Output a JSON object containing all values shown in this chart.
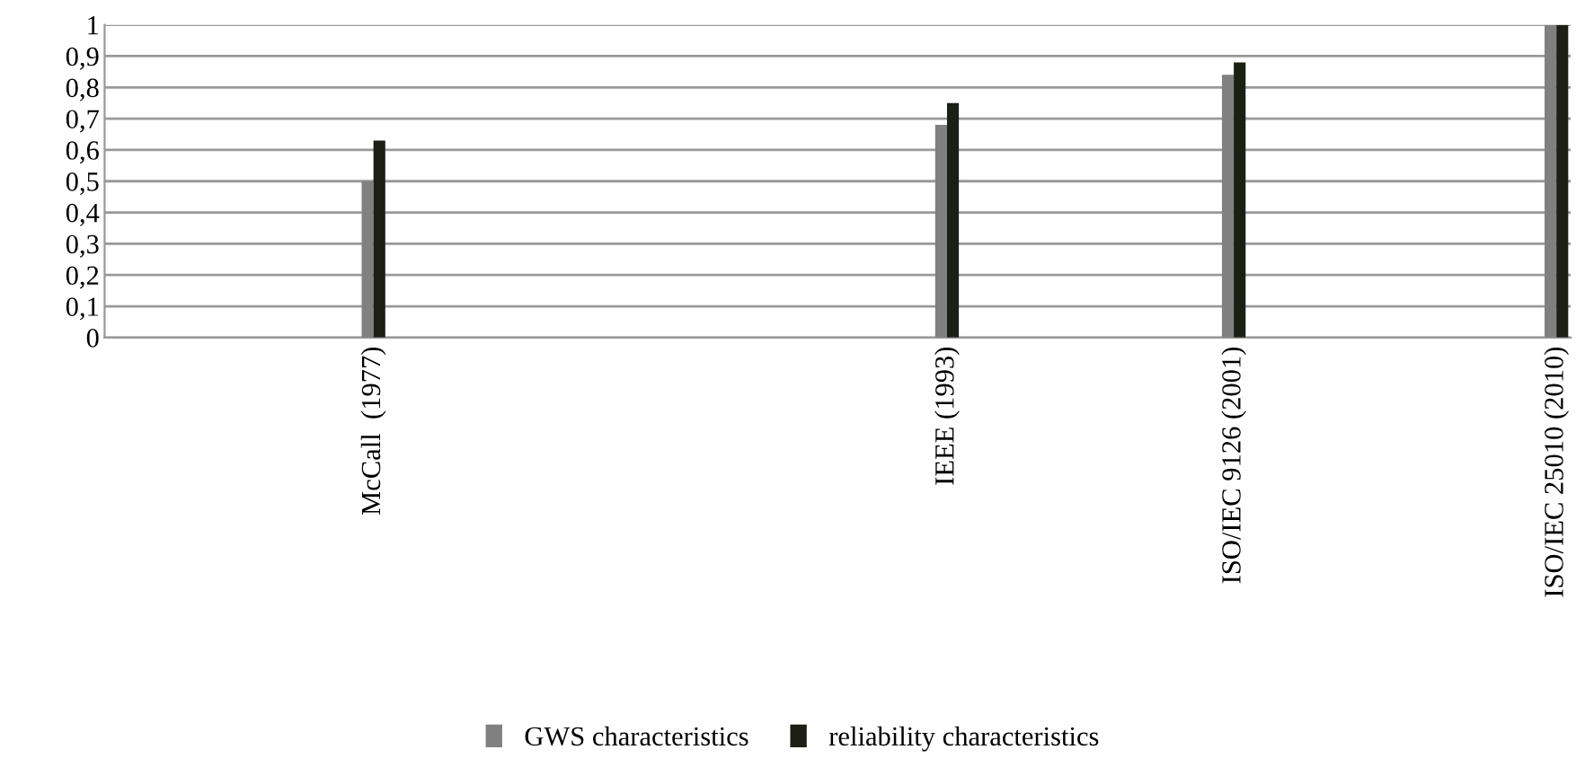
{
  "chart_data": {
    "type": "bar",
    "x": [
      1977,
      1993,
      2001,
      2010
    ],
    "series": [
      {
        "name": "GWS characteristics",
        "color": "#808080",
        "values": [
          0.5,
          0.68,
          0.84,
          1.0
        ]
      },
      {
        "name": "reliability characteristics",
        "color": "#1c1f14",
        "values": [
          0.63,
          0.75,
          0.88,
          1.0
        ]
      }
    ],
    "xlim": [
      1969.5,
      2010.4
    ],
    "xticks": [
      {
        "value": 1977,
        "label": "McCall  (1977)"
      },
      {
        "value": 1993,
        "label": "IEEE (1993)"
      },
      {
        "value": 2001,
        "label": "ISO/IEC 9126 (2001)"
      },
      {
        "value": 2010,
        "label": "ISO/IEC 25010 (2010)"
      }
    ],
    "ylim": [
      0,
      1
    ],
    "yticks": [
      0,
      {
        "value": 0.1,
        "label": "0,1"
      },
      {
        "value": 0.2,
        "label": "0,2"
      },
      {
        "value": 0.3,
        "label": "0,3"
      },
      {
        "value": 0.4,
        "label": "0,4"
      },
      {
        "value": 0.5,
        "label": "0,5"
      },
      {
        "value": 0.6,
        "label": "0,6"
      },
      {
        "value": 0.7,
        "label": "0,7"
      },
      {
        "value": 0.8,
        "label": "0,8"
      },
      {
        "value": 0.9,
        "label": "0,9"
      },
      1
    ],
    "grid": "y",
    "legend": "bottom"
  }
}
